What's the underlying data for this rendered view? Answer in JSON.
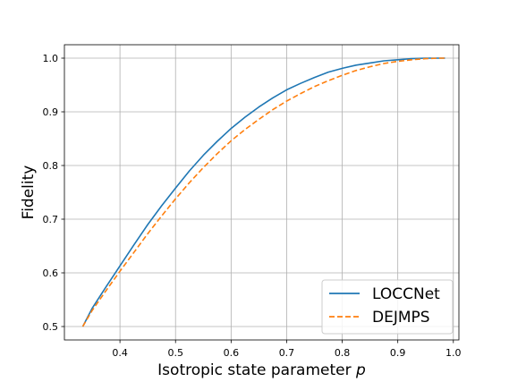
{
  "chart_data": {
    "type": "line",
    "title": "",
    "xlabel": "Isotropic state parameter ",
    "xlabel_var": "p",
    "ylabel": "Fidelity",
    "xlim": [
      0.3,
      1.01
    ],
    "ylim": [
      0.475,
      1.025
    ],
    "xticks": [
      0.4,
      0.5,
      0.6,
      0.7,
      0.8,
      0.9,
      1.0
    ],
    "xtick_labels": [
      "0.4",
      "0.5",
      "0.6",
      "0.7",
      "0.8",
      "0.9",
      "1.0"
    ],
    "yticks": [
      0.5,
      0.6,
      0.7,
      0.8,
      0.9,
      1.0
    ],
    "ytick_labels": [
      "0.5",
      "0.6",
      "0.7",
      "0.8",
      "0.9",
      "1.0"
    ],
    "grid": true,
    "legend_position": "bottom-right",
    "series": [
      {
        "name": "LOCCNet",
        "color": "#1f77b4",
        "style": "solid",
        "x": [
          0.333,
          0.35,
          0.375,
          0.4,
          0.425,
          0.45,
          0.475,
          0.5,
          0.525,
          0.55,
          0.575,
          0.6,
          0.625,
          0.65,
          0.675,
          0.7,
          0.725,
          0.75,
          0.775,
          0.8,
          0.825,
          0.85,
          0.875,
          0.9,
          0.925,
          0.95,
          0.975,
          0.985
        ],
        "y": [
          0.5,
          0.534,
          0.574,
          0.613,
          0.652,
          0.69,
          0.725,
          0.758,
          0.79,
          0.819,
          0.845,
          0.869,
          0.89,
          0.909,
          0.926,
          0.941,
          0.953,
          0.964,
          0.974,
          0.981,
          0.987,
          0.991,
          0.995,
          0.997,
          0.999,
          1.0,
          1.0,
          1.0
        ]
      },
      {
        "name": "DEJMPS",
        "color": "#ff7f0e",
        "style": "dashed",
        "x": [
          0.333,
          0.35,
          0.375,
          0.4,
          0.425,
          0.45,
          0.475,
          0.5,
          0.525,
          0.55,
          0.575,
          0.6,
          0.625,
          0.65,
          0.675,
          0.7,
          0.725,
          0.75,
          0.775,
          0.8,
          0.825,
          0.85,
          0.875,
          0.9,
          0.925,
          0.95,
          0.975,
          0.985
        ],
        "y": [
          0.5,
          0.53,
          0.567,
          0.603,
          0.638,
          0.673,
          0.706,
          0.738,
          0.768,
          0.796,
          0.822,
          0.846,
          0.867,
          0.886,
          0.904,
          0.92,
          0.934,
          0.947,
          0.958,
          0.968,
          0.977,
          0.984,
          0.99,
          0.994,
          0.997,
          0.999,
          1.0,
          1.0
        ]
      }
    ]
  }
}
